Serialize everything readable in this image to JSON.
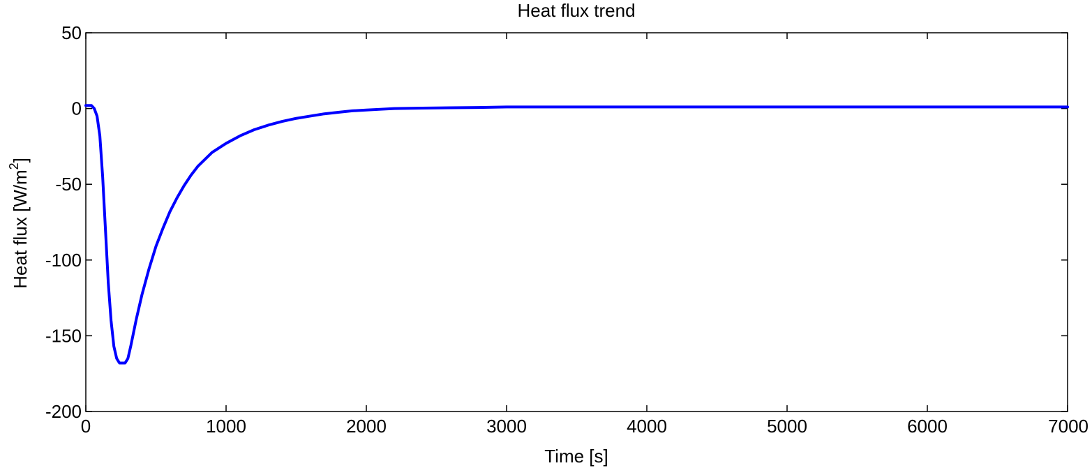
{
  "chart_data": {
    "type": "line",
    "title": "Heat flux trend",
    "xlabel": "Time [s]",
    "ylabel": {
      "base": "Heat flux [W/m",
      "sup": "2",
      "close": "]"
    },
    "xlim": [
      0,
      7000
    ],
    "ylim": [
      -200,
      50
    ],
    "xticks": [
      0,
      1000,
      2000,
      3000,
      4000,
      5000,
      6000,
      7000
    ],
    "yticks": [
      -200,
      -150,
      -100,
      -50,
      0,
      50
    ],
    "grid": false,
    "series": [
      {
        "color": "#0000ff",
        "x": [
          0,
          40,
          60,
          80,
          100,
          120,
          140,
          160,
          180,
          200,
          220,
          240,
          260,
          280,
          300,
          320,
          340,
          360,
          380,
          400,
          450,
          500,
          550,
          600,
          650,
          700,
          750,
          800,
          900,
          1000,
          1100,
          1200,
          1300,
          1400,
          1500,
          1600,
          1700,
          1800,
          1900,
          2000,
          2100,
          2200,
          2400,
          2600,
          2800,
          3000,
          3500,
          4000,
          5000,
          6000,
          7000
        ],
        "y": [
          2,
          2,
          0,
          -5,
          -18,
          -45,
          -80,
          -115,
          -140,
          -157,
          -165,
          -168,
          -168,
          -168,
          -165,
          -157,
          -148,
          -139,
          -131,
          -123,
          -106,
          -91,
          -79,
          -68,
          -59,
          -51,
          -44,
          -38,
          -29,
          -23,
          -18,
          -14,
          -11,
          -8.5,
          -6.5,
          -5,
          -3.5,
          -2.5,
          -1.5,
          -1,
          -0.5,
          0,
          0.3,
          0.5,
          0.7,
          1,
          1,
          1,
          1,
          1,
          1
        ]
      }
    ]
  }
}
